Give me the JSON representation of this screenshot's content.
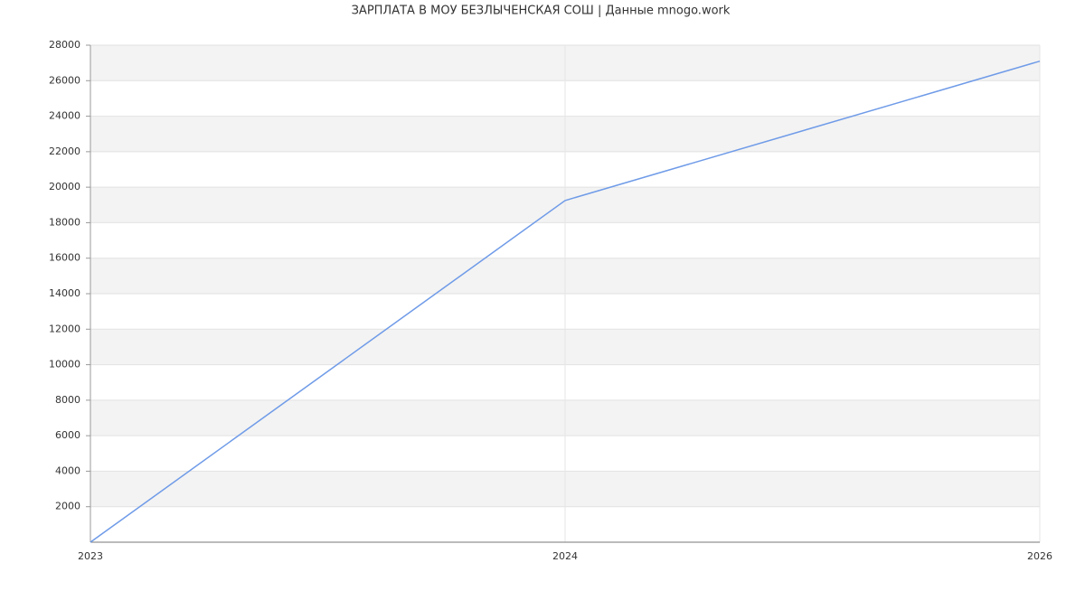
{
  "chart_data": {
    "type": "line",
    "title": "ЗАРПЛАТА В МОУ БЕЗЛЫЧЕНСКАЯ СОШ | Данные mnogo.work",
    "categories": [
      "2023",
      "2024",
      "2026"
    ],
    "values": [
      0,
      19250,
      27100
    ],
    "color": "#6f9be8",
    "ylim": [
      0,
      28000
    ],
    "yticks": [
      2000,
      4000,
      6000,
      8000,
      10000,
      12000,
      14000,
      16000,
      18000,
      20000,
      22000,
      24000,
      26000,
      28000
    ],
    "grid": true
  }
}
